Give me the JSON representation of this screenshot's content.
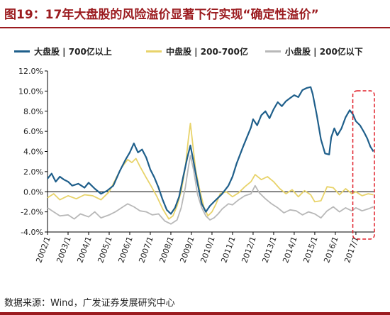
{
  "title": "图19：17年大盘股的风险溢价显著下行实现“确定性溢价”",
  "source": "数据来源：Wind，广发证券发展研究中心",
  "colors": {
    "large": "#1f5f8b",
    "mid": "#e8d36a",
    "small": "#b8b8b8",
    "highlight": "#e0202a",
    "title": "#9b1b1f"
  },
  "chart_data": {
    "type": "line",
    "ylim": [
      -4,
      12
    ],
    "yticks": [
      "12.0%",
      "10.0%",
      "8.0%",
      "6.0%",
      "4.0%",
      "2.0%",
      "0.0%",
      "-2.0%",
      "-4.0%"
    ],
    "ytick_values": [
      12,
      10,
      8,
      6,
      4,
      2,
      0,
      -2,
      -4
    ],
    "xlim": [
      2002,
      2017.9
    ],
    "xticks": [
      "2002/1",
      "2003/1",
      "2004/1",
      "2005/1",
      "2006/1",
      "2007/1",
      "2008/1",
      "2009/1",
      "2010/1",
      "2011/1",
      "2012/1",
      "2013/1",
      "2014/1",
      "2015/1",
      "2016/1",
      "2017/1"
    ],
    "xtick_values": [
      2002,
      2003,
      2004,
      2005,
      2006,
      2007,
      2008,
      2009,
      2010,
      2011,
      2012,
      2013,
      2014,
      2015,
      2016,
      2017
    ],
    "series": [
      {
        "name": "大盘股 | 700亿以上",
        "color": "#1f5f8b",
        "points": [
          [
            2002.0,
            1.3
          ],
          [
            2002.2,
            1.8
          ],
          [
            2002.4,
            1.0
          ],
          [
            2002.6,
            1.5
          ],
          [
            2002.8,
            1.2
          ],
          [
            2003.0,
            1.0
          ],
          [
            2003.2,
            0.6
          ],
          [
            2003.5,
            0.8
          ],
          [
            2003.8,
            0.4
          ],
          [
            2004.0,
            0.9
          ],
          [
            2004.3,
            0.3
          ],
          [
            2004.6,
            -0.2
          ],
          [
            2004.9,
            0.1
          ],
          [
            2005.2,
            0.6
          ],
          [
            2005.5,
            2.0
          ],
          [
            2005.8,
            3.2
          ],
          [
            2006.0,
            3.9
          ],
          [
            2006.2,
            4.8
          ],
          [
            2006.4,
            3.9
          ],
          [
            2006.6,
            4.2
          ],
          [
            2006.8,
            3.4
          ],
          [
            2007.0,
            2.2
          ],
          [
            2007.2,
            1.4
          ],
          [
            2007.4,
            0.4
          ],
          [
            2007.6,
            -0.8
          ],
          [
            2007.8,
            -1.8
          ],
          [
            2008.0,
            -2.2
          ],
          [
            2008.2,
            -1.6
          ],
          [
            2008.4,
            -0.5
          ],
          [
            2008.6,
            1.5
          ],
          [
            2008.8,
            3.4
          ],
          [
            2008.95,
            4.6
          ],
          [
            2009.1,
            3.0
          ],
          [
            2009.3,
            0.8
          ],
          [
            2009.5,
            -1.2
          ],
          [
            2009.7,
            -2.0
          ],
          [
            2009.9,
            -1.4
          ],
          [
            2010.1,
            -1.0
          ],
          [
            2010.3,
            -0.6
          ],
          [
            2010.5,
            -0.2
          ],
          [
            2010.8,
            0.6
          ],
          [
            2011.0,
            1.5
          ],
          [
            2011.2,
            2.8
          ],
          [
            2011.5,
            4.4
          ],
          [
            2011.7,
            5.4
          ],
          [
            2011.9,
            6.4
          ],
          [
            2012.0,
            7.2
          ],
          [
            2012.2,
            6.6
          ],
          [
            2012.4,
            7.6
          ],
          [
            2012.6,
            8.0
          ],
          [
            2012.8,
            7.3
          ],
          [
            2013.0,
            8.2
          ],
          [
            2013.2,
            8.9
          ],
          [
            2013.4,
            8.5
          ],
          [
            2013.6,
            9.0
          ],
          [
            2013.8,
            9.3
          ],
          [
            2014.0,
            9.6
          ],
          [
            2014.2,
            9.4
          ],
          [
            2014.4,
            10.1
          ],
          [
            2014.6,
            10.3
          ],
          [
            2014.8,
            10.4
          ],
          [
            2014.9,
            9.7
          ],
          [
            2015.1,
            7.6
          ],
          [
            2015.3,
            5.2
          ],
          [
            2015.5,
            3.8
          ],
          [
            2015.7,
            3.7
          ],
          [
            2015.8,
            5.4
          ],
          [
            2015.95,
            6.3
          ],
          [
            2016.1,
            5.6
          ],
          [
            2016.3,
            6.3
          ],
          [
            2016.5,
            7.4
          ],
          [
            2016.7,
            8.1
          ],
          [
            2016.85,
            7.7
          ],
          [
            2017.0,
            7.0
          ],
          [
            2017.2,
            6.6
          ],
          [
            2017.4,
            5.9
          ],
          [
            2017.55,
            5.3
          ],
          [
            2017.7,
            4.5
          ],
          [
            2017.85,
            4.0
          ]
        ]
      },
      {
        "name": "中盘股 | 200-700亿",
        "color": "#e8d36a",
        "points": [
          [
            2002.0,
            -0.6
          ],
          [
            2002.3,
            -0.2
          ],
          [
            2002.6,
            -0.8
          ],
          [
            2003.0,
            -0.4
          ],
          [
            2003.4,
            -0.7
          ],
          [
            2003.8,
            -0.3
          ],
          [
            2004.2,
            -0.4
          ],
          [
            2004.6,
            -0.8
          ],
          [
            2005.0,
            0.0
          ],
          [
            2005.3,
            1.2
          ],
          [
            2005.6,
            2.4
          ],
          [
            2005.9,
            3.2
          ],
          [
            2006.1,
            2.9
          ],
          [
            2006.3,
            3.3
          ],
          [
            2006.5,
            2.5
          ],
          [
            2006.8,
            1.4
          ],
          [
            2007.0,
            0.7
          ],
          [
            2007.3,
            -0.4
          ],
          [
            2007.6,
            -1.7
          ],
          [
            2007.9,
            -2.7
          ],
          [
            2008.1,
            -2.4
          ],
          [
            2008.3,
            -1.4
          ],
          [
            2008.5,
            0.0
          ],
          [
            2008.7,
            2.4
          ],
          [
            2008.85,
            5.2
          ],
          [
            2008.95,
            6.8
          ],
          [
            2009.05,
            5.0
          ],
          [
            2009.2,
            2.2
          ],
          [
            2009.4,
            0.2
          ],
          [
            2009.6,
            -1.5
          ],
          [
            2009.8,
            -2.4
          ],
          [
            2010.0,
            -2.0
          ],
          [
            2010.2,
            -1.2
          ],
          [
            2010.4,
            -0.2
          ],
          [
            2010.7,
            0.0
          ],
          [
            2011.0,
            -0.5
          ],
          [
            2011.3,
            -0.1
          ],
          [
            2011.6,
            0.5
          ],
          [
            2011.9,
            1.0
          ],
          [
            2012.1,
            1.7
          ],
          [
            2012.4,
            1.2
          ],
          [
            2012.7,
            1.5
          ],
          [
            2013.0,
            1.0
          ],
          [
            2013.3,
            0.3
          ],
          [
            2013.6,
            -0.2
          ],
          [
            2013.9,
            0.2
          ],
          [
            2014.2,
            -0.5
          ],
          [
            2014.5,
            0.1
          ],
          [
            2014.8,
            -0.3
          ],
          [
            2015.0,
            -1.0
          ],
          [
            2015.3,
            -0.9
          ],
          [
            2015.6,
            0.5
          ],
          [
            2015.9,
            0.4
          ],
          [
            2016.2,
            -0.3
          ],
          [
            2016.5,
            0.3
          ],
          [
            2016.8,
            -0.2
          ],
          [
            2017.0,
            0.0
          ],
          [
            2017.3,
            -0.4
          ],
          [
            2017.6,
            -0.2
          ],
          [
            2017.85,
            -0.3
          ]
        ]
      },
      {
        "name": "小盘股 | 200亿以下",
        "color": "#b8b8b8",
        "points": [
          [
            2002.0,
            -1.6
          ],
          [
            2002.3,
            -2.0
          ],
          [
            2002.6,
            -2.4
          ],
          [
            2003.0,
            -2.3
          ],
          [
            2003.3,
            -2.7
          ],
          [
            2003.6,
            -2.2
          ],
          [
            2004.0,
            -2.5
          ],
          [
            2004.3,
            -2.0
          ],
          [
            2004.6,
            -2.6
          ],
          [
            2005.0,
            -2.3
          ],
          [
            2005.3,
            -2.0
          ],
          [
            2005.6,
            -1.6
          ],
          [
            2005.9,
            -1.2
          ],
          [
            2006.2,
            -1.5
          ],
          [
            2006.5,
            -1.9
          ],
          [
            2006.8,
            -2.0
          ],
          [
            2007.1,
            -2.3
          ],
          [
            2007.4,
            -2.2
          ],
          [
            2007.7,
            -2.9
          ],
          [
            2008.0,
            -3.2
          ],
          [
            2008.3,
            -2.8
          ],
          [
            2008.5,
            -1.6
          ],
          [
            2008.7,
            0.4
          ],
          [
            2008.85,
            2.4
          ],
          [
            2008.95,
            3.6
          ],
          [
            2009.1,
            2.2
          ],
          [
            2009.3,
            -0.3
          ],
          [
            2009.5,
            -1.6
          ],
          [
            2009.7,
            -2.4
          ],
          [
            2009.9,
            -2.8
          ],
          [
            2010.1,
            -2.6
          ],
          [
            2010.3,
            -2.2
          ],
          [
            2010.5,
            -1.7
          ],
          [
            2010.8,
            -1.2
          ],
          [
            2011.0,
            -1.3
          ],
          [
            2011.3,
            -0.8
          ],
          [
            2011.6,
            -0.4
          ],
          [
            2011.9,
            -0.2
          ],
          [
            2012.1,
            0.6
          ],
          [
            2012.3,
            -0.1
          ],
          [
            2012.6,
            -0.7
          ],
          [
            2012.9,
            -1.2
          ],
          [
            2013.2,
            -1.6
          ],
          [
            2013.5,
            -2.1
          ],
          [
            2013.8,
            -1.8
          ],
          [
            2014.1,
            -1.9
          ],
          [
            2014.4,
            -2.3
          ],
          [
            2014.7,
            -2.0
          ],
          [
            2015.0,
            -2.2
          ],
          [
            2015.3,
            -2.6
          ],
          [
            2015.6,
            -1.9
          ],
          [
            2015.9,
            -1.5
          ],
          [
            2016.2,
            -2.0
          ],
          [
            2016.5,
            -1.6
          ],
          [
            2016.8,
            -1.9
          ],
          [
            2017.0,
            -1.6
          ],
          [
            2017.3,
            -1.9
          ],
          [
            2017.6,
            -1.7
          ],
          [
            2017.85,
            -1.5
          ]
        ]
      }
    ],
    "highlight_range": [
      2016.85,
      2017.9
    ]
  }
}
